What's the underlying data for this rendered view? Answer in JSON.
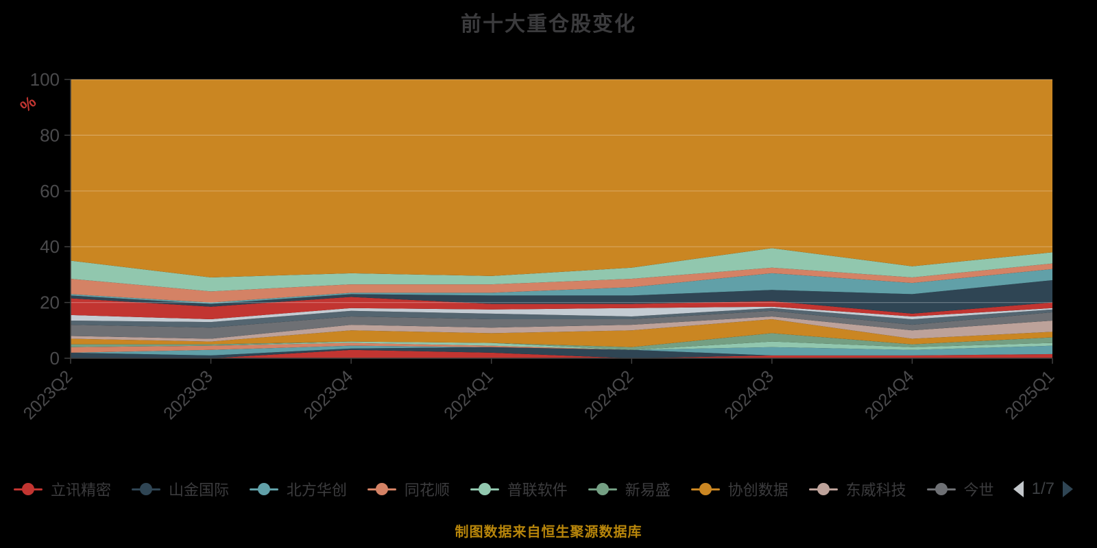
{
  "title": {
    "text": "前十大重仓股变化",
    "color": "#3b3b3d"
  },
  "footer": {
    "text": "制图数据来自恒生聚源数据库",
    "color": "#b8860b"
  },
  "y_axis": {
    "name": "%",
    "name_color": "#c23531",
    "tick_labels": [
      "0",
      "20",
      "40",
      "60",
      "80",
      "100"
    ],
    "label_color": "#4a4a4c",
    "axis_color": "#3f3f3f"
  },
  "x_axis": {
    "labels": [
      "2023Q2",
      "2023Q3",
      "2023Q4",
      "2024Q1",
      "2024Q2",
      "2024Q3",
      "2024Q4",
      "2025Q1"
    ],
    "label_color": "#4a4a4c",
    "axis_color": "#3f3f3f"
  },
  "legend": {
    "items": [
      {
        "label": "立讯精密",
        "color": "#c23531"
      },
      {
        "label": "山金国际",
        "color": "#2f4554"
      },
      {
        "label": "北方华创",
        "color": "#61a0a8"
      },
      {
        "label": "同花顺",
        "color": "#d48265"
      },
      {
        "label": "普联软件",
        "color": "#91c7ae"
      },
      {
        "label": "新易盛",
        "color": "#749f83"
      },
      {
        "label": "协创数据",
        "color": "#ca8622"
      },
      {
        "label": "东威科技",
        "color": "#bda29a"
      },
      {
        "label": "今世",
        "color": "#6e7074"
      }
    ],
    "pager": {
      "text": "1/7",
      "prev_color": "#c3c7cb",
      "next_color": "#2f4554"
    }
  },
  "chart_data": {
    "type": "area",
    "stacked": true,
    "unit": "percent",
    "title": "前十大重仓股变化",
    "ylabel": "%",
    "ylim": [
      0,
      100
    ],
    "yticks": [
      0,
      20,
      40,
      60,
      80,
      100
    ],
    "grid": "horizontal",
    "legend_position": "bottom",
    "categories": [
      "2023Q2",
      "2023Q3",
      "2023Q4",
      "2024Q1",
      "2024Q2",
      "2024Q3",
      "2024Q4",
      "2025Q1"
    ],
    "series": [
      {
        "name": "立讯精密",
        "color": "#c23531",
        "values": [
          0,
          0,
          3,
          2,
          0,
          1,
          1,
          1.5
        ]
      },
      {
        "name": "山金国际",
        "color": "#2f4554",
        "values": [
          2,
          1,
          0.5,
          2,
          3,
          0,
          0,
          0
        ]
      },
      {
        "name": "北方华创",
        "color": "#61a0a8",
        "values": [
          0,
          2,
          1,
          0,
          0,
          3,
          2,
          3
        ]
      },
      {
        "name": "同花顺",
        "color": "#d48265",
        "values": [
          2,
          1.5,
          1,
          0.5,
          0,
          0,
          0,
          0
        ]
      },
      {
        "name": "普联软件",
        "color": "#91c7ae",
        "values": [
          0,
          0,
          0.5,
          1,
          0,
          2,
          1,
          1
        ]
      },
      {
        "name": "新易盛",
        "color": "#749f83",
        "values": [
          1,
          0.5,
          0,
          0,
          1,
          3,
          1,
          2
        ]
      },
      {
        "name": "协创数据",
        "color": "#ca8622",
        "values": [
          2,
          1,
          4,
          3.5,
          6,
          5,
          2,
          2
        ]
      },
      {
        "name": "东威科技",
        "color": "#bda29a",
        "values": [
          1,
          1,
          2,
          2,
          2,
          1,
          3,
          4
        ]
      },
      {
        "name": "今世",
        "color": "#6e7074",
        "values": [
          4,
          4,
          3,
          3,
          2,
          2,
          2,
          3
        ]
      },
      {
        "name": "",
        "color": "#546570",
        "values": [
          1.5,
          2,
          2,
          2,
          1,
          1,
          2,
          1
        ]
      },
      {
        "name": "",
        "color": "#c4ccd3",
        "values": [
          2,
          1,
          1,
          1.5,
          3,
          0.5,
          1,
          0.5
        ]
      },
      {
        "name": "",
        "color": "#c23531",
        "values": [
          6,
          4.5,
          4,
          2,
          1.5,
          2,
          1,
          2
        ]
      },
      {
        "name": "",
        "color": "#2f4554",
        "values": [
          1,
          1,
          1,
          3,
          3,
          4,
          7,
          8
        ]
      },
      {
        "name": "",
        "color": "#61a0a8",
        "values": [
          0.5,
          0.5,
          0.5,
          1,
          3,
          6,
          4,
          4
        ]
      },
      {
        "name": "",
        "color": "#d48265",
        "values": [
          5.5,
          4,
          3,
          3,
          3,
          2,
          2,
          2
        ]
      },
      {
        "name": "",
        "color": "#91c7ae",
        "values": [
          6.5,
          5,
          4,
          3,
          4,
          7,
          4,
          4
        ]
      },
      {
        "name": "",
        "color": "#ca8622",
        "values": [
          65,
          71,
          69.5,
          70.5,
          67.5,
          60.5,
          67,
          62
        ]
      }
    ]
  }
}
